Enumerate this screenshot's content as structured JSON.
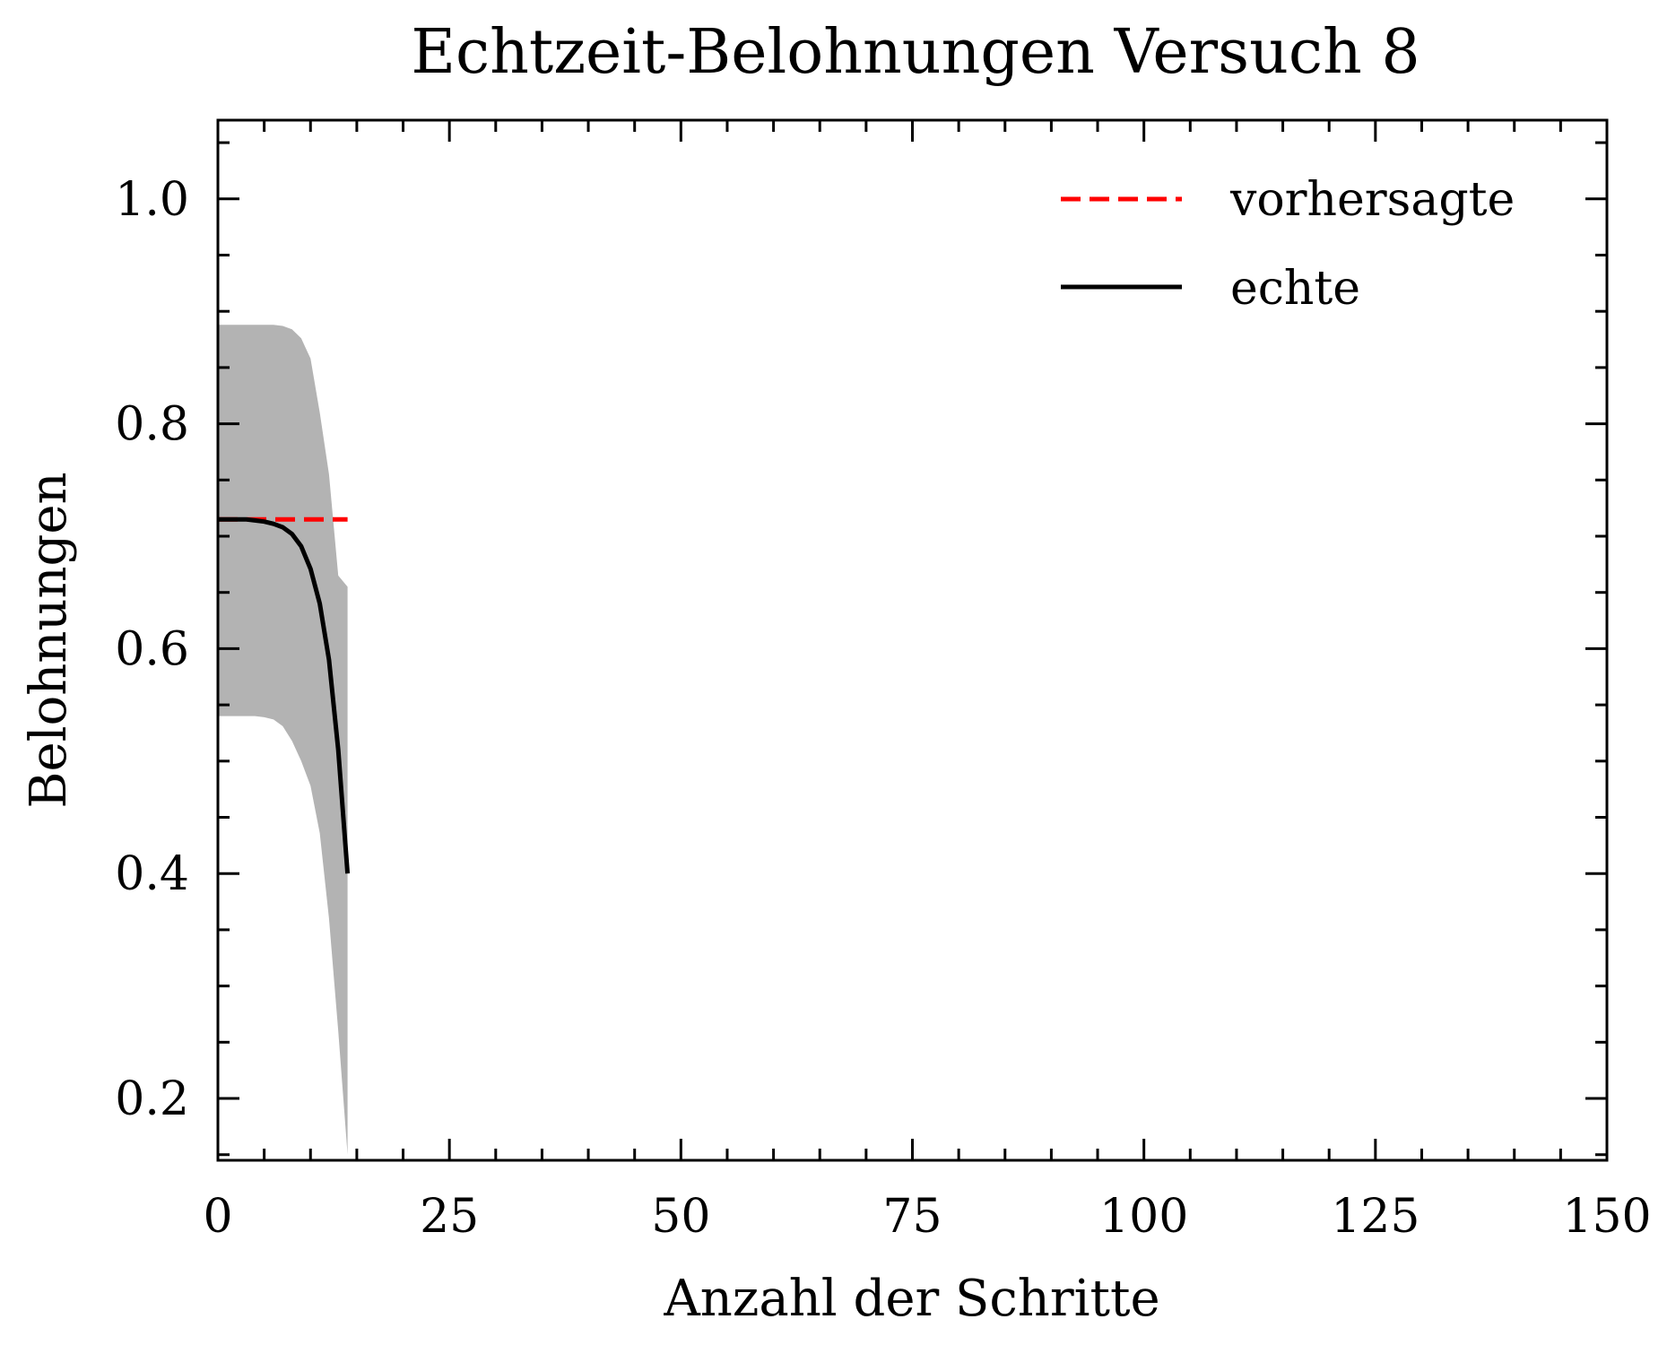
{
  "chart_data": {
    "type": "line",
    "title": "Echtzeit-Belohnungen Versuch 8",
    "xlabel": "Anzahl der Schritte",
    "ylabel": "Belohnungen",
    "xlim": [
      0,
      150
    ],
    "ylim": [
      0.145,
      1.07
    ],
    "xticks": [
      0,
      25,
      50,
      75,
      100,
      125,
      150
    ],
    "xtick_labels": [
      "0",
      "25",
      "50",
      "75",
      "100",
      "125",
      "150"
    ],
    "yticks": [
      0.2,
      0.4,
      0.6,
      0.8,
      1.0
    ],
    "ytick_labels": [
      "0.2",
      "0.4",
      "0.6",
      "0.8",
      "1.0"
    ],
    "grid": false,
    "legend_position": "top-right",
    "series": [
      {
        "name": "vorhersagte",
        "style": "dashed",
        "color": "#ff0000",
        "x": [
          0,
          14
        ],
        "y": [
          0.715,
          0.715
        ]
      },
      {
        "name": "echte",
        "style": "solid",
        "color": "#000000",
        "x": [
          0,
          1,
          2,
          3,
          4,
          5,
          6,
          7,
          8,
          9,
          10,
          11,
          12,
          13,
          14
        ],
        "y": [
          0.715,
          0.715,
          0.715,
          0.715,
          0.714,
          0.713,
          0.711,
          0.708,
          0.702,
          0.691,
          0.671,
          0.64,
          0.59,
          0.51,
          0.4
        ]
      }
    ],
    "band": {
      "color": "#b3b3b3",
      "x": [
        0,
        1,
        2,
        3,
        4,
        5,
        6,
        7,
        8,
        9,
        10,
        11,
        12,
        13,
        14
      ],
      "upper": [
        0.888,
        0.888,
        0.888,
        0.888,
        0.888,
        0.888,
        0.888,
        0.887,
        0.884,
        0.876,
        0.858,
        0.81,
        0.755,
        0.665,
        0.655
      ],
      "lower": [
        0.54,
        0.54,
        0.54,
        0.54,
        0.54,
        0.539,
        0.537,
        0.531,
        0.518,
        0.5,
        0.478,
        0.436,
        0.36,
        0.26,
        0.15
      ]
    }
  }
}
